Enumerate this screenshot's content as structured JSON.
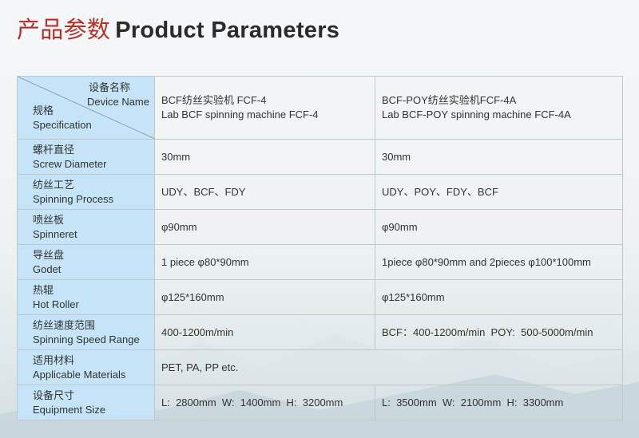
{
  "title": {
    "cn": "产品参数",
    "en": "Product Parameters"
  },
  "header": {
    "device_cn": "设备名称",
    "device_en": "Device Name",
    "spec_cn": "规格",
    "spec_en": "Specification",
    "models": [
      {
        "cn": "BCF纺丝实验机 FCF-4",
        "en": "Lab BCF spinning machine FCF-4"
      },
      {
        "cn": "BCF-POY纺丝实验机FCF-4A",
        "en": "Lab BCF-POY spinning machine FCF-4A"
      }
    ]
  },
  "rows": [
    {
      "cn": "螺杆直径",
      "en": "Screw Diameter",
      "a": "30mm",
      "b": "30mm"
    },
    {
      "cn": "纺丝工艺",
      "en": "Spinning Process",
      "a": "UDY、BCF、FDY",
      "b": "UDY、POY、FDY、BCF"
    },
    {
      "cn": "喷丝板",
      "en": "Spinneret",
      "a": "φ90mm",
      "b": "φ90mm"
    },
    {
      "cn": "导丝盘",
      "en": "Godet",
      "a": "1 piece φ80*90mm",
      "b": "1piece φ80*90mm and 2pieces φ100*100mm"
    },
    {
      "cn": "热辊",
      "en": "Hot Roller",
      "a": "φ125*160mm",
      "b": "φ125*160mm"
    },
    {
      "cn": "纺丝速度范围",
      "en": "Spinning Speed Range",
      "a": "400-1200m/min",
      "b": "BCF：400-1200m/min  POY:  500-5000m/min"
    },
    {
      "cn": "适用材料",
      "en": "Applicable Materials",
      "merged": "PET, PA, PP etc."
    },
    {
      "cn": "设备尺寸",
      "en": "Equipment Size",
      "a": "L:  2800mm  W:  1400mm  H:  3200mm",
      "b": "L:  3500mm  W:  2100mm  H:  3300mm"
    }
  ],
  "colors": {
    "title_cn": "#b8302a",
    "label_bg": "#c6e4f7"
  }
}
